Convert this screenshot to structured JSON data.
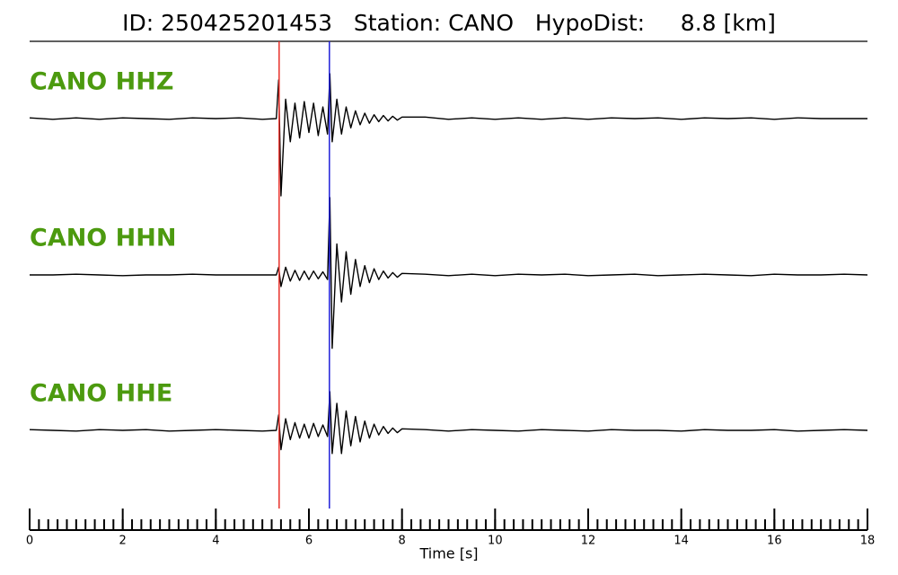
{
  "chart_data": {
    "type": "seismogram",
    "title": "ID: 250425201453   Station: CANO   HypoDist:     8.8 [km]",
    "xlabel": "Time [s]",
    "xlim": [
      0,
      18
    ],
    "xticks": [
      0,
      2,
      4,
      6,
      8,
      10,
      12,
      14,
      16,
      18
    ],
    "xminor_step": 0.2,
    "ylim": [
      -1,
      1
    ],
    "x": [
      0,
      0.5,
      1,
      1.5,
      2,
      2.5,
      3,
      3.5,
      4,
      4.5,
      5,
      5.3,
      5.35,
      5.4,
      5.5,
      5.6,
      5.7,
      5.8,
      5.9,
      6.0,
      6.1,
      6.2,
      6.3,
      6.4,
      6.45,
      6.5,
      6.6,
      6.7,
      6.8,
      6.9,
      7.0,
      7.1,
      7.2,
      7.3,
      7.4,
      7.5,
      7.6,
      7.7,
      7.8,
      7.9,
      8.0,
      8.5,
      9,
      9.5,
      10,
      10.5,
      11,
      11.5,
      12,
      12.5,
      13,
      13.5,
      14,
      14.5,
      15,
      15.5,
      16,
      16.5,
      17,
      17.5,
      18
    ],
    "label_color": "#4c9a0f",
    "line_color": "#000000",
    "series": [
      {
        "name": "CANO HHZ",
        "values": [
          0.01,
          -0.01,
          0.01,
          -0.01,
          0.01,
          0,
          -0.01,
          0.01,
          0,
          0.01,
          -0.01,
          0,
          0.5,
          -1.0,
          0.25,
          -0.3,
          0.2,
          -0.25,
          0.22,
          -0.18,
          0.2,
          -0.22,
          0.15,
          -0.2,
          0.58,
          -0.3,
          0.25,
          -0.2,
          0.15,
          -0.12,
          0.1,
          -0.08,
          0.07,
          -0.06,
          0.05,
          -0.04,
          0.04,
          -0.03,
          0.03,
          -0.02,
          0.02,
          0.02,
          -0.01,
          0.01,
          -0.01,
          0.01,
          -0.01,
          0.01,
          -0.01,
          0.01,
          0,
          0.01,
          -0.01,
          0.01,
          0,
          0.01,
          -0.01,
          0.01,
          0,
          0,
          0
        ]
      },
      {
        "name": "CANO HHN",
        "values": [
          0,
          0,
          0.01,
          0,
          -0.01,
          0,
          0,
          0.01,
          0,
          0,
          0,
          0,
          0.1,
          -0.15,
          0.1,
          -0.08,
          0.06,
          -0.07,
          0.05,
          -0.06,
          0.05,
          -0.05,
          0.04,
          -0.06,
          1.0,
          -0.95,
          0.4,
          -0.35,
          0.3,
          -0.25,
          0.2,
          -0.15,
          0.12,
          -0.1,
          0.08,
          -0.06,
          0.05,
          -0.04,
          0.03,
          -0.03,
          0.02,
          0.01,
          -0.01,
          0.01,
          -0.01,
          0.01,
          0,
          0.01,
          -0.01,
          0,
          0.01,
          -0.01,
          0,
          0.01,
          0,
          -0.01,
          0.01,
          0,
          0,
          0.01,
          0
        ]
      },
      {
        "name": "CANO HHE",
        "values": [
          0.01,
          0,
          -0.01,
          0.01,
          0,
          0.01,
          -0.01,
          0,
          0.01,
          0,
          -0.01,
          0,
          0.2,
          -0.25,
          0.15,
          -0.12,
          0.1,
          -0.1,
          0.08,
          -0.1,
          0.09,
          -0.08,
          0.07,
          -0.08,
          0.5,
          -0.3,
          0.35,
          -0.3,
          0.25,
          -0.2,
          0.18,
          -0.15,
          0.12,
          -0.1,
          0.08,
          -0.06,
          0.05,
          -0.04,
          0.03,
          -0.03,
          0.02,
          0.01,
          -0.01,
          0.01,
          0,
          -0.01,
          0.01,
          0,
          -0.01,
          0.01,
          0,
          0,
          -0.01,
          0.01,
          0,
          0,
          0.01,
          -0.01,
          0,
          0.01,
          0
        ]
      }
    ],
    "vlines": [
      {
        "x": 5.36,
        "color": "#e8302a"
      },
      {
        "x": 6.44,
        "color": "#1f1fd8"
      }
    ]
  }
}
